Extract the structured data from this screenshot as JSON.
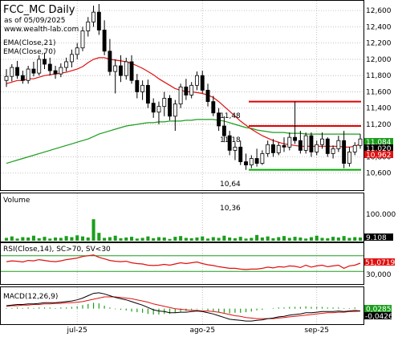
{
  "header": {
    "title": "FCC_MC Daily",
    "subtitle": "as of 05/09/2025",
    "url": "www.wealth-lab.com",
    "ema21_label": "EMA(Close,21)",
    "ema70_label": "EMA(Close,70)"
  },
  "colors": {
    "ema21": "#e01010",
    "ema70": "#1c9e1c",
    "resistance": "#e00000",
    "support": "#00aa00",
    "volume": "#1c9e1c",
    "rsi": "#e01010",
    "rsi_bands": "#1c9e1c",
    "macd": "#000000",
    "macd_signal": "#e01010",
    "macd_hist": "#1c9e1c",
    "badge_green": "#1c9e1c",
    "badge_red": "#e01010",
    "badge_black": "#000000",
    "grid": "#b4b4b4",
    "up_candle": "#ffffff",
    "down_candle": "#000000"
  },
  "annotations": {
    "a1148": "11,48",
    "a1118": "11,18",
    "a1064": "10,64",
    "a1036": "10,36"
  },
  "badges": {
    "price_ema70": "11,084",
    "price_close": "11,020",
    "price_ema21": "10,962",
    "volume": "9.108",
    "rsi": "51,0719",
    "macd1": "0,0285",
    "macd2": "-0,0426"
  },
  "panels": {
    "volume_label": "Volume",
    "rsi_label": "RSI(Close,14), SC>70, SV<30",
    "macd_label": "MACD(12,26,9)"
  },
  "chart_data": [
    {
      "type": "candlestick",
      "title": "FCC_MC Daily",
      "ylim": [
        10.4,
        12.7
      ],
      "y_ticks": [
        "12,600",
        "12,400",
        "12,200",
        "12,000",
        "11,800",
        "11,600",
        "11,400",
        "11,200",
        "11,020",
        "10,800",
        "10,600"
      ],
      "x_ticks": [
        "jul-25",
        "ago-25",
        "sep-25"
      ],
      "candles": [
        [
          11.74,
          11.88,
          11.66,
          11.79
        ],
        [
          11.79,
          11.94,
          11.73,
          11.9
        ],
        [
          11.9,
          11.98,
          11.76,
          11.8
        ],
        [
          11.8,
          11.86,
          11.7,
          11.74
        ],
        [
          11.74,
          11.92,
          11.7,
          11.88
        ],
        [
          11.88,
          11.97,
          11.79,
          11.83
        ],
        [
          11.83,
          12.05,
          11.8,
          12.0
        ],
        [
          12.0,
          12.08,
          11.88,
          11.94
        ],
        [
          11.94,
          12.02,
          11.8,
          11.86
        ],
        [
          11.86,
          11.92,
          11.76,
          11.82
        ],
        [
          11.82,
          11.95,
          11.78,
          11.9
        ],
        [
          11.9,
          12.02,
          11.85,
          11.97
        ],
        [
          11.97,
          12.12,
          11.9,
          12.06
        ],
        [
          12.06,
          12.2,
          12.0,
          12.14
        ],
        [
          12.14,
          12.4,
          12.1,
          12.35
        ],
        [
          12.35,
          12.52,
          12.28,
          12.46
        ],
        [
          12.46,
          12.66,
          12.4,
          12.58
        ],
        [
          12.58,
          12.68,
          12.3,
          12.36
        ],
        [
          12.36,
          12.48,
          12.05,
          12.1
        ],
        [
          12.1,
          12.25,
          11.8,
          11.85
        ],
        [
          11.85,
          12.0,
          11.58,
          11.92
        ],
        [
          11.92,
          12.05,
          11.72,
          11.8
        ],
        [
          11.8,
          12.02,
          11.75,
          11.97
        ],
        [
          11.97,
          12.05,
          11.7,
          11.74
        ],
        [
          11.74,
          11.82,
          11.52,
          11.6
        ],
        [
          11.6,
          11.74,
          11.5,
          11.68
        ],
        [
          11.68,
          11.75,
          11.4,
          11.46
        ],
        [
          11.46,
          11.52,
          11.28,
          11.35
        ],
        [
          11.35,
          11.48,
          11.2,
          11.42
        ],
        [
          11.42,
          11.6,
          11.3,
          11.52
        ],
        [
          11.52,
          11.56,
          11.25,
          11.3
        ],
        [
          11.3,
          11.5,
          11.12,
          11.45
        ],
        [
          11.45,
          11.7,
          11.4,
          11.66
        ],
        [
          11.66,
          11.76,
          11.5,
          11.56
        ],
        [
          11.56,
          11.72,
          11.52,
          11.68
        ],
        [
          11.68,
          11.85,
          11.62,
          11.8
        ],
        [
          11.8,
          11.86,
          11.58,
          11.62
        ],
        [
          11.62,
          11.7,
          11.42,
          11.48
        ],
        [
          11.48,
          11.55,
          11.3,
          11.34
        ],
        [
          11.34,
          11.4,
          11.12,
          11.18
        ],
        [
          11.18,
          11.3,
          10.98,
          11.06
        ],
        [
          11.06,
          11.12,
          10.82,
          10.88
        ],
        [
          10.88,
          10.98,
          10.76,
          10.92
        ],
        [
          10.92,
          11.0,
          10.7,
          10.74
        ],
        [
          10.74,
          10.84,
          10.64,
          10.7
        ],
        [
          10.7,
          10.82,
          10.66,
          10.78
        ],
        [
          10.78,
          10.9,
          10.68,
          10.72
        ],
        [
          10.72,
          10.88,
          10.7,
          10.84
        ],
        [
          10.84,
          11.0,
          10.8,
          10.95
        ],
        [
          10.95,
          11.02,
          10.8,
          10.85
        ],
        [
          10.85,
          10.98,
          10.82,
          10.94
        ],
        [
          10.94,
          11.04,
          10.86,
          10.92
        ],
        [
          10.92,
          11.1,
          10.88,
          11.04
        ],
        [
          11.04,
          11.48,
          10.96,
          11.0
        ],
        [
          11.0,
          11.12,
          10.84,
          10.88
        ],
        [
          10.88,
          11.1,
          10.84,
          11.06
        ],
        [
          11.06,
          11.1,
          10.8,
          10.86
        ],
        [
          10.86,
          11.0,
          10.82,
          10.95
        ],
        [
          10.95,
          11.1,
          10.9,
          11.02
        ],
        [
          11.02,
          11.04,
          10.8,
          10.84
        ],
        [
          10.84,
          10.94,
          10.78,
          10.9
        ],
        [
          10.9,
          11.06,
          10.86,
          11.0
        ],
        [
          11.0,
          11.12,
          10.66,
          10.72
        ],
        [
          10.72,
          10.92,
          10.68,
          10.86
        ],
        [
          10.86,
          10.98,
          10.82,
          10.94
        ],
        [
          10.94,
          11.08,
          10.9,
          11.02
        ]
      ],
      "ema21": [
        11.7,
        11.72,
        11.74,
        11.74,
        11.76,
        11.76,
        11.78,
        11.8,
        11.81,
        11.82,
        11.83,
        11.84,
        11.86,
        11.88,
        11.91,
        11.96,
        12.0,
        12.02,
        12.02,
        12.0,
        11.99,
        11.98,
        11.97,
        11.95,
        11.92,
        11.89,
        11.85,
        11.81,
        11.76,
        11.72,
        11.68,
        11.64,
        11.62,
        11.6,
        11.6,
        11.59,
        11.58,
        11.56,
        11.53,
        11.48,
        11.42,
        11.36,
        11.3,
        11.24,
        11.19,
        11.14,
        11.1,
        11.06,
        11.03,
        11.0,
        10.98,
        10.96,
        10.95,
        10.94,
        10.93,
        10.93,
        10.93,
        10.93,
        10.93,
        10.93,
        10.93,
        10.93,
        10.92,
        10.92,
        10.93,
        10.96
      ],
      "ema70": [
        10.72,
        10.74,
        10.76,
        10.78,
        10.8,
        10.82,
        10.84,
        10.86,
        10.88,
        10.9,
        10.92,
        10.94,
        10.96,
        10.98,
        11.0,
        11.02,
        11.05,
        11.08,
        11.1,
        11.12,
        11.14,
        11.16,
        11.18,
        11.19,
        11.2,
        11.21,
        11.22,
        11.22,
        11.23,
        11.23,
        11.24,
        11.24,
        11.24,
        11.25,
        11.25,
        11.26,
        11.26,
        11.26,
        11.26,
        11.25,
        11.24,
        11.22,
        11.2,
        11.18,
        11.16,
        11.15,
        11.13,
        11.12,
        11.11,
        11.1,
        11.1,
        11.1,
        11.09,
        11.09,
        11.09,
        11.08,
        11.08,
        11.08,
        11.08,
        11.08,
        11.08,
        11.08,
        11.08,
        11.08,
        11.08,
        11.08
      ],
      "resistance_upper": 11.48,
      "resistance_mid": 11.18,
      "support": 10.64
    },
    {
      "type": "bar",
      "title": "Volume",
      "ylim": [
        0,
        130
      ],
      "y_ticks": [
        "100.000",
        "9.108"
      ],
      "values": [
        8,
        12,
        6,
        10,
        9,
        14,
        7,
        11,
        6,
        9,
        8,
        13,
        10,
        15,
        12,
        9,
        60,
        22,
        8,
        10,
        14,
        7,
        9,
        11,
        6,
        8,
        12,
        7,
        10,
        9,
        5,
        11,
        13,
        8,
        7,
        9,
        12,
        6,
        10,
        8,
        14,
        9,
        7,
        11,
        6,
        8,
        16,
        9,
        12,
        7,
        10,
        13,
        8,
        11,
        9,
        6,
        10,
        14,
        8,
        7,
        11,
        9,
        13,
        8,
        10,
        9
      ]
    },
    {
      "type": "line",
      "title": "RSI(Close,14), SC>70, SV<30",
      "ylim": [
        0,
        100
      ],
      "y_ticks": [
        "51,0719",
        "30,000"
      ],
      "bands": [
        70,
        30
      ],
      "values": [
        55,
        57,
        56,
        54,
        58,
        57,
        60,
        58,
        56,
        55,
        57,
        60,
        62,
        64,
        68,
        70,
        72,
        66,
        62,
        58,
        56,
        55,
        56,
        52,
        50,
        49,
        46,
        45,
        46,
        48,
        46,
        49,
        52,
        50,
        52,
        54,
        50,
        47,
        45,
        42,
        40,
        38,
        38,
        36,
        35,
        36,
        36,
        38,
        41,
        39,
        42,
        41,
        44,
        43,
        40,
        46,
        41,
        44,
        46,
        42,
        44,
        46,
        38,
        44,
        46,
        51
      ]
    },
    {
      "type": "line",
      "title": "MACD(12,26,9)",
      "ylim": [
        -0.25,
        0.35
      ],
      "y_ticks": [
        "0,0285",
        "-0,0426"
      ],
      "macd": [
        0.05,
        0.06,
        0.07,
        0.07,
        0.08,
        0.08,
        0.09,
        0.1,
        0.1,
        0.1,
        0.11,
        0.12,
        0.13,
        0.15,
        0.18,
        0.22,
        0.26,
        0.27,
        0.25,
        0.22,
        0.19,
        0.17,
        0.15,
        0.12,
        0.09,
        0.06,
        0.02,
        -0.02,
        -0.04,
        -0.05,
        -0.07,
        -0.07,
        -0.06,
        -0.06,
        -0.05,
        -0.04,
        -0.05,
        -0.07,
        -0.09,
        -0.12,
        -0.15,
        -0.18,
        -0.19,
        -0.2,
        -0.21,
        -0.21,
        -0.2,
        -0.19,
        -0.17,
        -0.16,
        -0.14,
        -0.13,
        -0.11,
        -0.1,
        -0.09,
        -0.07,
        -0.07,
        -0.06,
        -0.05,
        -0.05,
        -0.05,
        -0.04,
        -0.05,
        -0.04,
        -0.03,
        -0.04
      ],
      "signal": [
        0.04,
        0.05,
        0.05,
        0.06,
        0.06,
        0.07,
        0.07,
        0.08,
        0.08,
        0.09,
        0.09,
        0.1,
        0.1,
        0.11,
        0.12,
        0.14,
        0.16,
        0.18,
        0.2,
        0.2,
        0.2,
        0.19,
        0.18,
        0.17,
        0.15,
        0.13,
        0.11,
        0.08,
        0.06,
        0.04,
        0.02,
        0.0,
        -0.01,
        -0.02,
        -0.03,
        -0.03,
        -0.04,
        -0.04,
        -0.05,
        -0.06,
        -0.08,
        -0.1,
        -0.12,
        -0.13,
        -0.15,
        -0.16,
        -0.17,
        -0.17,
        -0.17,
        -0.17,
        -0.16,
        -0.15,
        -0.14,
        -0.13,
        -0.12,
        -0.11,
        -0.1,
        -0.09,
        -0.08,
        -0.07,
        -0.07,
        -0.06,
        -0.06,
        -0.05,
        -0.05,
        -0.04
      ],
      "hist": [
        0.01,
        0.01,
        0.02,
        0.01,
        0.02,
        0.01,
        0.02,
        0.02,
        0.02,
        0.01,
        0.02,
        0.02,
        0.03,
        0.04,
        0.06,
        0.08,
        0.1,
        0.09,
        0.05,
        0.02,
        -0.01,
        -0.02,
        -0.03,
        -0.05,
        -0.06,
        -0.07,
        -0.09,
        -0.1,
        -0.1,
        -0.09,
        -0.09,
        -0.07,
        -0.05,
        -0.04,
        -0.02,
        -0.01,
        -0.01,
        -0.03,
        -0.04,
        -0.06,
        -0.07,
        -0.08,
        -0.07,
        -0.07,
        -0.06,
        -0.05,
        -0.03,
        -0.02,
        0.0,
        0.01,
        0.02,
        0.02,
        0.03,
        0.03,
        0.03,
        0.04,
        0.03,
        0.03,
        0.03,
        0.02,
        0.02,
        0.02,
        0.01,
        0.01,
        0.02,
        0.0
      ]
    }
  ]
}
